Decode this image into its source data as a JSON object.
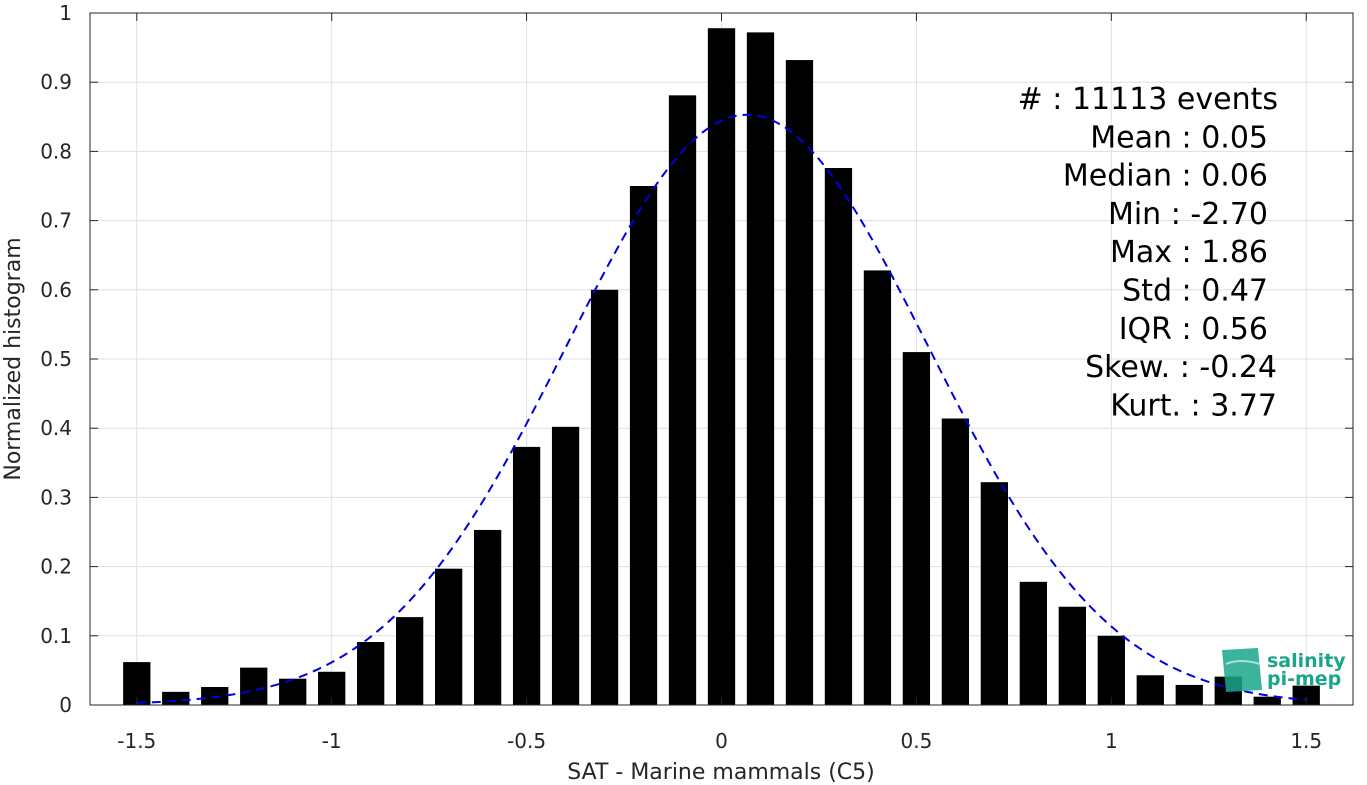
{
  "chart_data": {
    "type": "bar",
    "title": "",
    "xlabel": "SAT - Marine mammals (C5)",
    "ylabel": "Normalized histogram",
    "xlim": [
      -1.62,
      1.62
    ],
    "ylim": [
      0,
      1
    ],
    "grid": true,
    "x_ticks": [
      -1.5,
      -1,
      -0.5,
      0,
      0.5,
      1,
      1.5
    ],
    "x_tick_labels": [
      "-1.5",
      "-1",
      "-0.5",
      "0",
      "0.5",
      "1",
      "1.5"
    ],
    "y_ticks": [
      0,
      0.1,
      0.2,
      0.3,
      0.4,
      0.5,
      0.6,
      0.7,
      0.8,
      0.9,
      1
    ],
    "y_tick_labels": [
      "0",
      "0.1",
      "0.2",
      "0.3",
      "0.4",
      "0.5",
      "0.6",
      "0.7",
      "0.8",
      "0.9",
      "1"
    ],
    "bar_width": 0.07,
    "bars": {
      "x": [
        -1.5,
        -1.4,
        -1.3,
        -1.2,
        -1.1,
        -1.0,
        -0.9,
        -0.8,
        -0.7,
        -0.6,
        -0.5,
        -0.4,
        -0.3,
        -0.2,
        -0.1,
        0.0,
        0.1,
        0.2,
        0.3,
        0.4,
        0.5,
        0.6,
        0.7,
        0.8,
        0.9,
        1.0,
        1.1,
        1.2,
        1.3,
        1.4,
        1.5
      ],
      "values": [
        0.062,
        0.019,
        0.026,
        0.054,
        0.038,
        0.048,
        0.091,
        0.127,
        0.197,
        0.253,
        0.373,
        0.402,
        0.6,
        0.75,
        0.881,
        0.978,
        0.972,
        0.932,
        0.776,
        0.628,
        0.51,
        0.414,
        0.322,
        0.178,
        0.142,
        0.1,
        0.043,
        0.029,
        0.041,
        0.012,
        0.028
      ],
      "color": "#000000"
    },
    "fit_curve": {
      "style": "dashed",
      "color": "#0000e0",
      "mean": 0.066,
      "std": 0.465,
      "peak": 0.853,
      "x_range": [
        -1.5,
        1.5
      ]
    },
    "stats_box": {
      "position": "top-right",
      "lines": [
        "#  : 11113 events",
        "Mean : 0.05",
        "Median : 0.06",
        "Min : -2.70",
        "Max : 1.86",
        "Std : 0.47",
        "IQR : 0.56",
        "Skew. : -0.24",
        "Kurt. : 3.77"
      ]
    }
  },
  "logo": {
    "line1": "salinity",
    "line2": "pi-mep",
    "color": "#1aa68a"
  }
}
